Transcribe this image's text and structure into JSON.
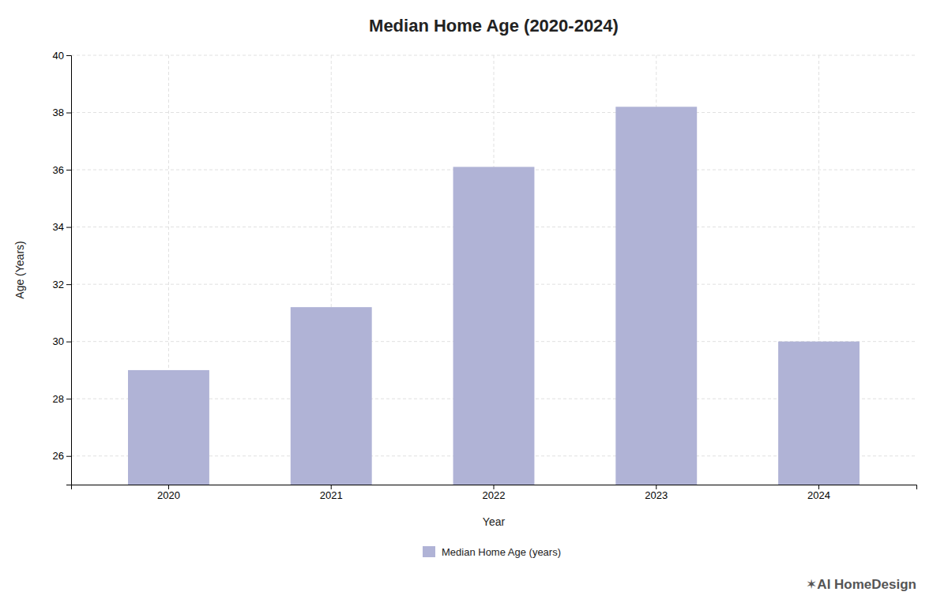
{
  "chart_data": {
    "type": "bar",
    "title": "Median Home Age (2020-2024)",
    "categories": [
      "2020",
      "2021",
      "2022",
      "2023",
      "2024"
    ],
    "series": [
      {
        "name": "Median Home Age (years)",
        "color": "#b0b3d6",
        "values": [
          29.0,
          31.2,
          36.1,
          38.2,
          30.0
        ]
      }
    ],
    "xlabel": "Year",
    "ylabel": "Age (Years)",
    "ylim": [
      25,
      40
    ],
    "yticks": [
      26,
      28,
      30,
      32,
      34,
      36,
      38,
      40
    ],
    "grid": true,
    "legend": "bottom",
    "annotation": "✶AI HomeDesign"
  }
}
